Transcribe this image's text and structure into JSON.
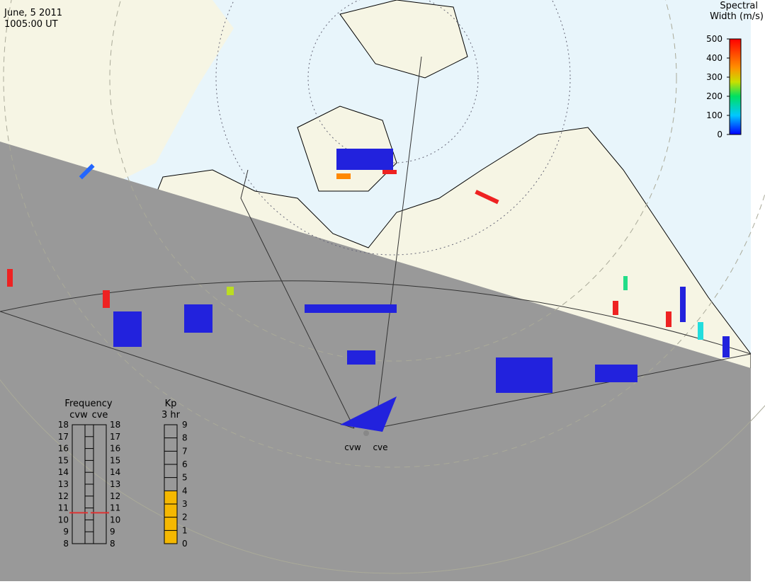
{
  "header": {
    "date": "June, 5 2011",
    "time": "1005:00 UT"
  },
  "colorbar": {
    "title_line1": "Spectral",
    "title_line2": "Width (m/s)",
    "range": [
      0,
      500
    ],
    "ticks": [
      0,
      100,
      200,
      300,
      400,
      500
    ]
  },
  "radars": [
    "cvw",
    "cve"
  ],
  "frequency": {
    "title": "Frequency",
    "range": [
      8,
      18
    ],
    "ticks": [
      8,
      9,
      10,
      11,
      12,
      13,
      14,
      15,
      16,
      17,
      18
    ],
    "values": [
      10.6,
      10.6
    ]
  },
  "kp": {
    "title": "Kp",
    "subtitle": "3 hr",
    "range": [
      0,
      9
    ],
    "ticks": [
      0,
      1,
      2,
      3,
      4,
      5,
      6,
      7,
      8,
      9
    ],
    "value": 4
  }
}
